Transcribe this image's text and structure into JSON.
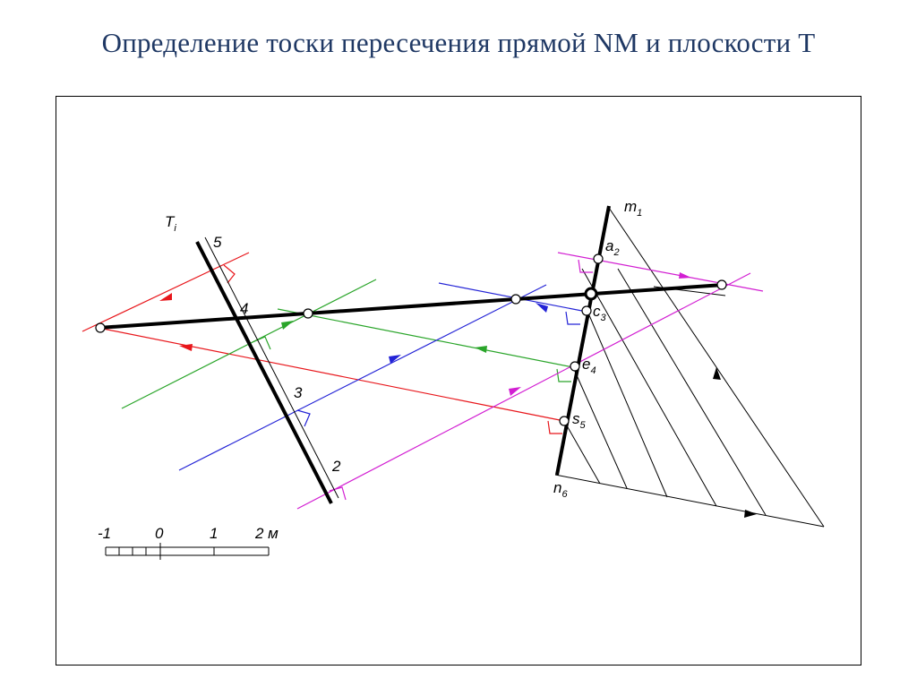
{
  "title": "Определение тоски пересечения прямой NM и плоскости T",
  "labels": {
    "T": {
      "main": "T",
      "sub": "i"
    },
    "m": {
      "main": "m",
      "sub": "1"
    },
    "a": {
      "main": "a",
      "sub": "2"
    },
    "c": {
      "main": "c",
      "sub": "3"
    },
    "e": {
      "main": "e",
      "sub": "4"
    },
    "s": {
      "main": "s",
      "sub": "5"
    },
    "n": {
      "main": "n",
      "sub": "6"
    },
    "n5": "5",
    "n4": "4",
    "n3": "3",
    "n2": "2"
  },
  "scale": {
    "ticks": [
      "-1",
      "0",
      "1",
      "2 м"
    ]
  },
  "colors": {
    "red": "#e8161b",
    "green": "#2aa52a",
    "blue": "#2323d6",
    "magenta": "#d21ed2",
    "black": "#000000"
  }
}
